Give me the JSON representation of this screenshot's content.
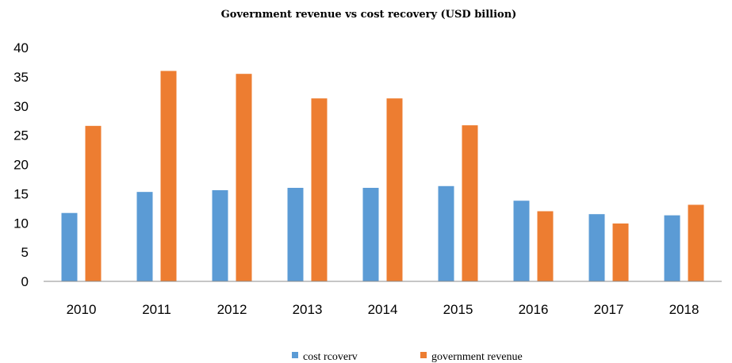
{
  "chart_data": {
    "type": "bar",
    "title": "Government revenue vs cost recovery (USD billion)",
    "xlabel": "",
    "ylabel": "",
    "categories": [
      "2010",
      "2011",
      "2012",
      "2013",
      "2014",
      "2015",
      "2016",
      "2017",
      "2018"
    ],
    "series": [
      {
        "name": "cost rcoverv",
        "color": "#5b9bd5",
        "values": [
          11.7,
          15.3,
          15.6,
          16.0,
          16.0,
          16.3,
          13.8,
          11.5,
          11.3
        ]
      },
      {
        "name": "government revenue",
        "color": "#ed7d31",
        "values": [
          26.6,
          36.0,
          35.5,
          31.3,
          31.3,
          26.7,
          12.0,
          9.9,
          13.1
        ]
      }
    ],
    "ylim": [
      0,
      40
    ],
    "yticks": [
      "0",
      "5",
      "10",
      "15",
      "20",
      "25",
      "30",
      "35",
      "40"
    ],
    "grid": false,
    "legend_position": "bottom"
  }
}
